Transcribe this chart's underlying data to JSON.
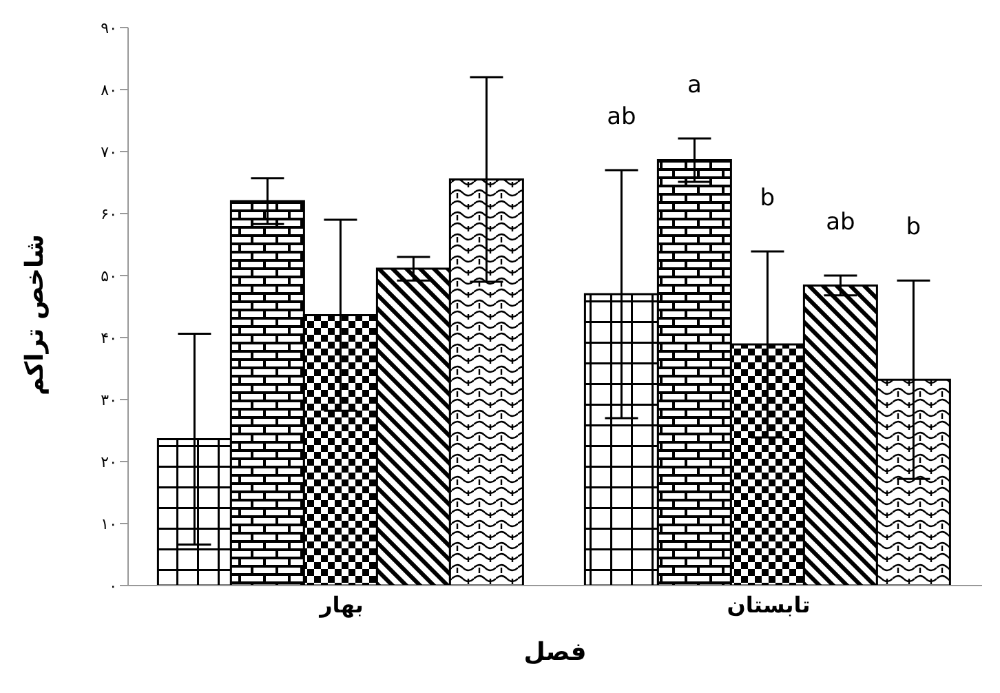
{
  "chart_data": {
    "type": "bar",
    "xlabel": "فصل",
    "ylabel": "شاخص تراکم",
    "categories": [
      "بهار",
      "تابستان"
    ],
    "series": [
      {
        "color": "#000000",
        "values": [
          23.6,
          47
        ],
        "errors": [
          17,
          20
        ]
      },
      {
        "color": "#000000",
        "values": [
          62,
          68.6
        ],
        "errors": [
          3.7,
          3.5
        ]
      },
      {
        "color": "#000000",
        "values": [
          43.6,
          38.9
        ],
        "errors": [
          15.4,
          15
        ]
      },
      {
        "color": "#000000",
        "values": [
          51.1,
          48.4
        ],
        "errors": [
          1.9,
          1.6
        ]
      },
      {
        "color": "#000000",
        "values": [
          65.5,
          33.2
        ],
        "errors": [
          16.5,
          16
        ]
      }
    ],
    "ylim": [
      0,
      90
    ],
    "yticks": [
      {
        "value": 0,
        "label": "۰"
      },
      {
        "value": 10,
        "label": "۱۰"
      },
      {
        "value": 20,
        "label": "۲۰"
      },
      {
        "value": 30,
        "label": "۳۰"
      },
      {
        "value": 40,
        "label": "۴۰"
      },
      {
        "value": 50,
        "label": "۵۰"
      },
      {
        "value": 60,
        "label": "۶۰"
      },
      {
        "value": 70,
        "label": "۷۰"
      },
      {
        "value": 80,
        "label": "۸۰"
      },
      {
        "value": 90,
        "label": "۹۰"
      }
    ],
    "annotations": [
      "ab",
      "a",
      "b",
      "ab",
      "b"
    ],
    "grid": false,
    "legend": false
  }
}
